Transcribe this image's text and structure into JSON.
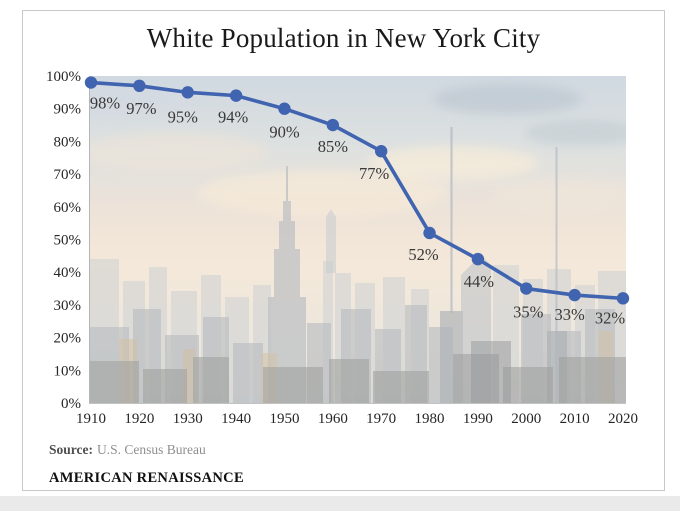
{
  "title": "White Population in New York City",
  "source": {
    "label": "Source:",
    "text": "U.S. Census Bureau"
  },
  "branding": "AMERICAN RENAISSANCE",
  "colors": {
    "line": "#4064b0",
    "marker": "#4064b0",
    "data_label": "#383838",
    "tick_label": "#262626"
  },
  "chart_data": {
    "type": "line",
    "title": "White Population in New York City",
    "x": [
      1910,
      1920,
      1930,
      1940,
      1950,
      1960,
      1970,
      1980,
      1990,
      2000,
      2010,
      2020
    ],
    "values": [
      98,
      97,
      95,
      94,
      90,
      85,
      77,
      52,
      44,
      35,
      33,
      32
    ],
    "point_labels": [
      "98%",
      "97%",
      "95%",
      "94%",
      "90%",
      "85%",
      "77%",
      "52%",
      "44%",
      "35%",
      "33%",
      "32%"
    ],
    "y_tick_labels": [
      "0%",
      "10%",
      "20%",
      "30%",
      "40%",
      "50%",
      "60%",
      "70%",
      "80%",
      "90%",
      "100%"
    ],
    "xlabel": "",
    "ylabel": "",
    "ylim": [
      0,
      100
    ],
    "grid": false,
    "legend": null,
    "background": "faded New York City skyline photograph"
  }
}
